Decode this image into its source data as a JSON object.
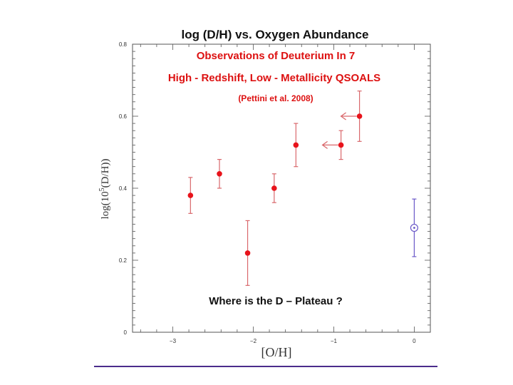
{
  "chart_data": {
    "type": "scatter",
    "title": "log (D/H)  vs.  Oxygen  Abundance",
    "annotations": {
      "line1": "Observations  of  Deuterium  In  7",
      "line2": "High - Redshift,  Low - Metallicity  QSOALS",
      "line3": "(Pettini  et al.  2008)",
      "question": "Where  is  the  D – Plateau ?"
    },
    "xlabel": "[O/H]",
    "ylabel_prefix": "log(10",
    "ylabel_sup": "5",
    "ylabel_suffix": "(D/H))",
    "xlim": [
      -3.5,
      0.2
    ],
    "ylim": [
      0,
      0.8
    ],
    "x_ticks": [
      "-3",
      "-2",
      "-1",
      "0"
    ],
    "y_ticks": [
      "0",
      "0.2",
      "0.4",
      "0.6",
      "0.8"
    ],
    "grid": false,
    "colors": {
      "measurements": "#e8131b",
      "solar": "#6a58c8",
      "errorbar": "#d9686c",
      "accent": "#dd1111"
    },
    "series": [
      {
        "points": [
          {
            "x": -2.78,
            "y": 0.38,
            "err": 0.05
          },
          {
            "x": -2.42,
            "y": 0.44,
            "err": 0.04
          },
          {
            "x": -2.07,
            "y": 0.22,
            "err": 0.09
          },
          {
            "x": -1.74,
            "y": 0.4,
            "err": 0.04
          },
          {
            "x": -1.47,
            "y": 0.52,
            "err": 0.06
          },
          {
            "x": -0.91,
            "y": 0.52,
            "err": 0.04,
            "upper_limit": true
          },
          {
            "x": -0.68,
            "y": 0.6,
            "err": 0.07,
            "upper_limit": true
          }
        ]
      },
      {
        "points": [
          {
            "x": 0.0,
            "y": 0.29,
            "err": 0.08
          }
        ]
      }
    ]
  }
}
